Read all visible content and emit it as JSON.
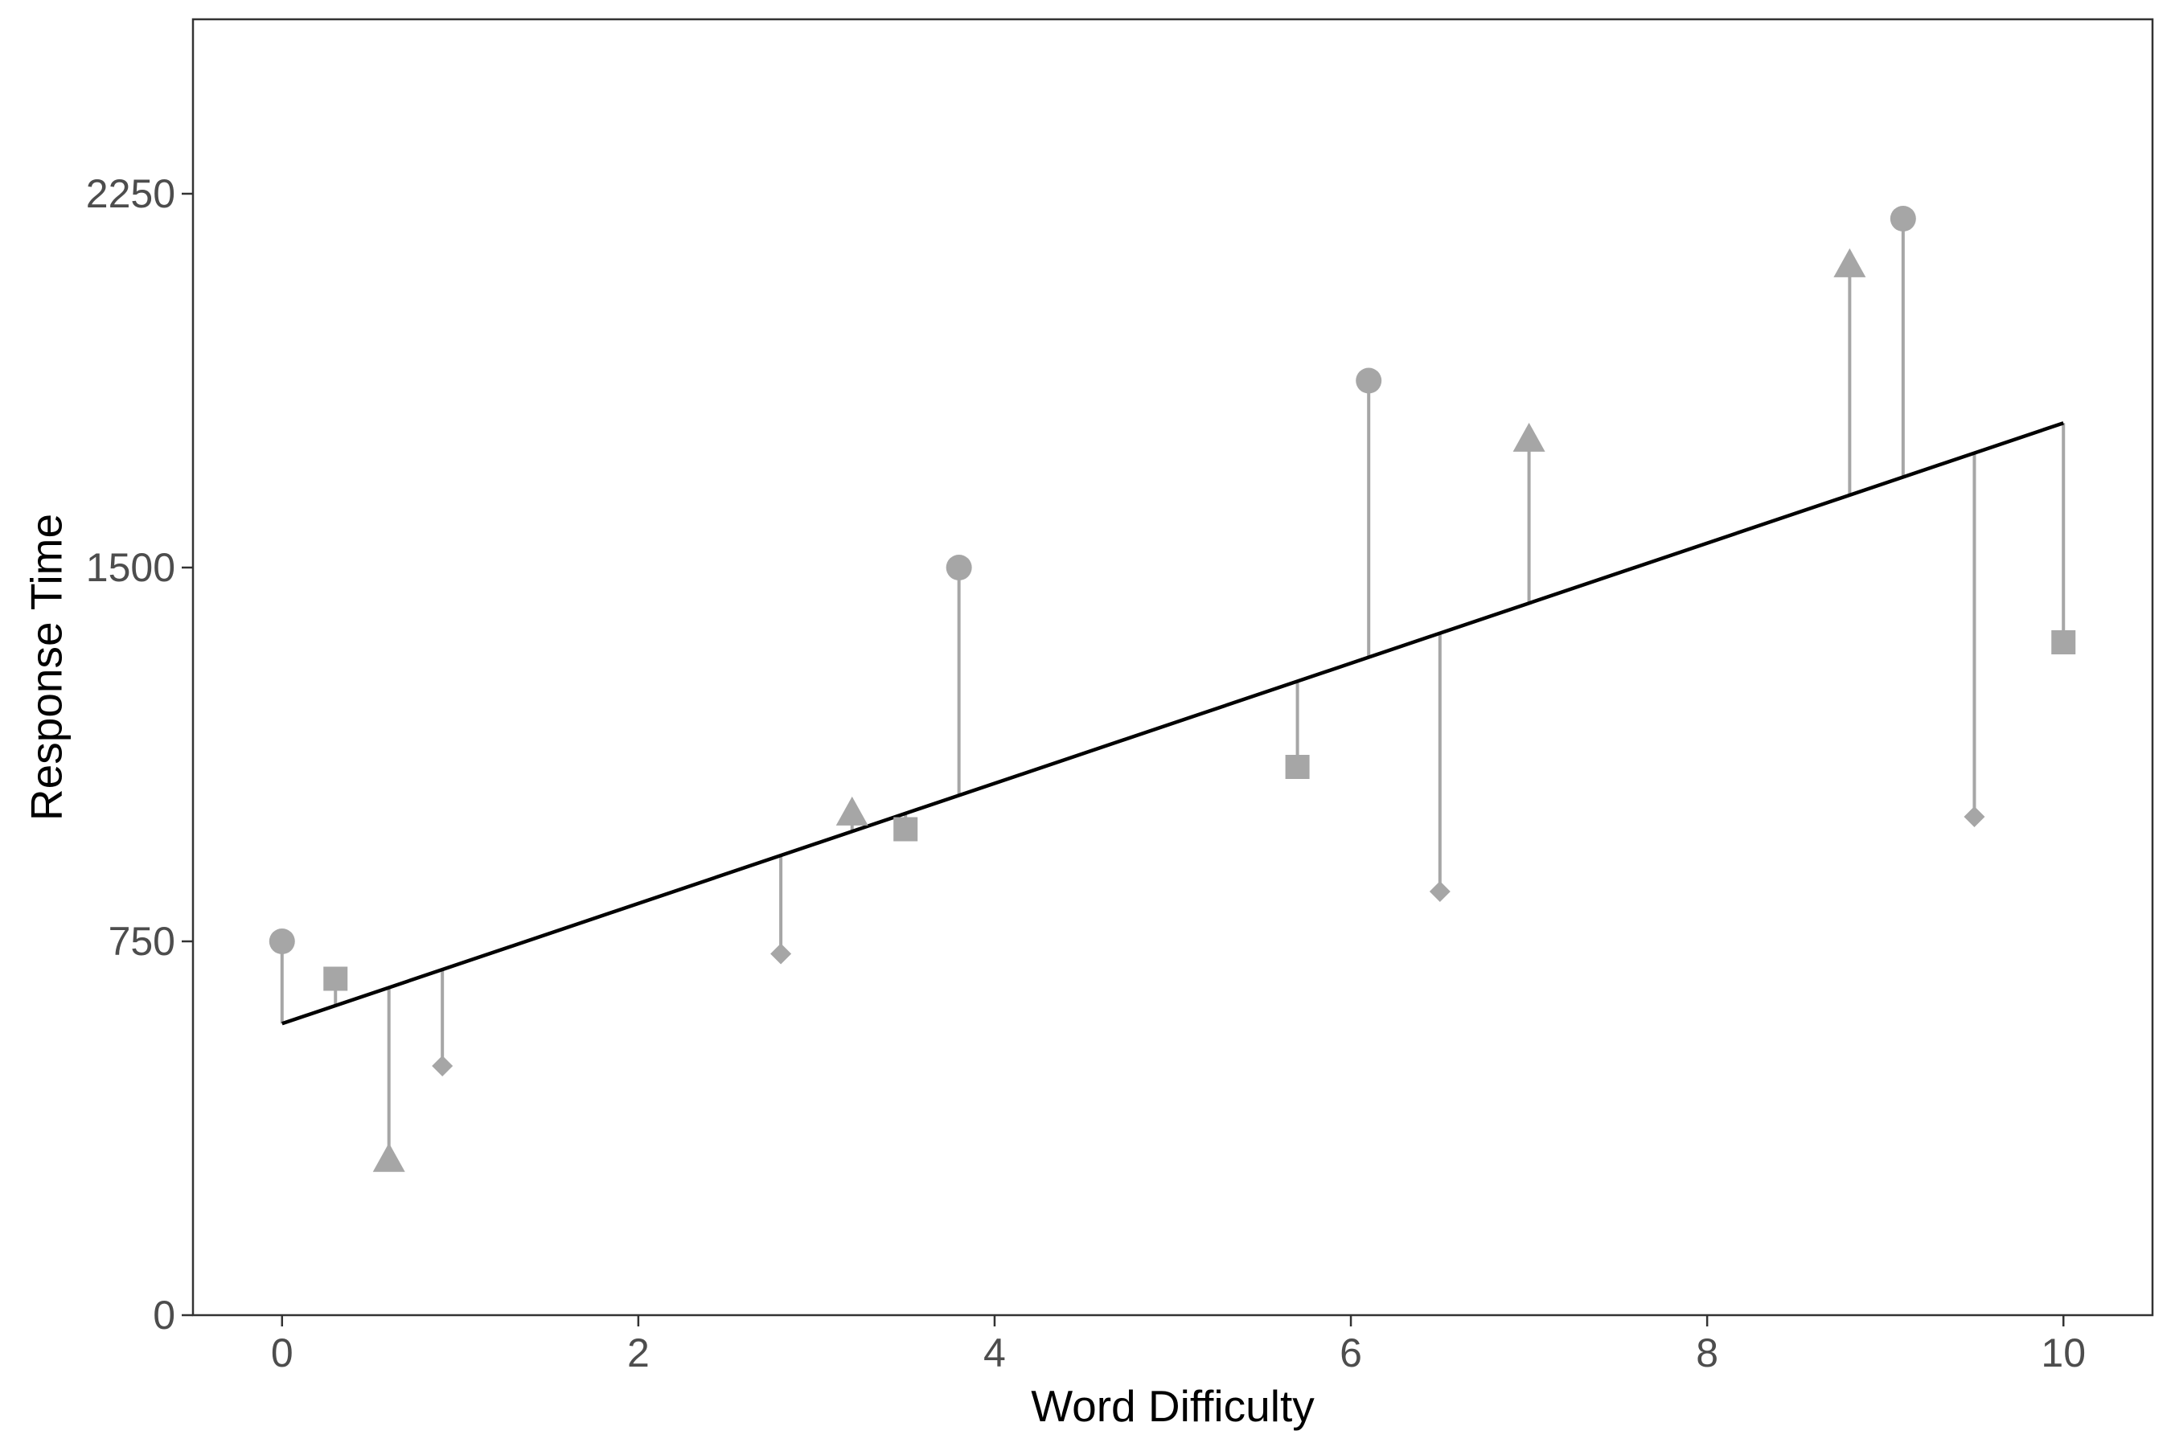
{
  "chart_data": {
    "type": "scatter",
    "title": "",
    "xlabel": "Word Difficulty",
    "ylabel": "Response Time",
    "xlim": [
      -0.5,
      10.5
    ],
    "ylim": [
      0,
      2600
    ],
    "xticks": [
      0,
      2,
      4,
      6,
      8,
      10
    ],
    "yticks": [
      0,
      750,
      1500,
      2250
    ],
    "grid": false,
    "legend": "none",
    "fit_line": {
      "intercept": 585,
      "slope": 120.5,
      "x_range": [
        0,
        10
      ],
      "color": "#000000"
    },
    "marker_color": "#a6a6a6",
    "points": [
      {
        "x": 0.0,
        "y": 750,
        "shape": "circle"
      },
      {
        "x": 0.3,
        "y": 675,
        "shape": "square"
      },
      {
        "x": 0.6,
        "y": 310,
        "shape": "triangle"
      },
      {
        "x": 0.9,
        "y": 500,
        "shape": "diamond"
      },
      {
        "x": 2.8,
        "y": 725,
        "shape": "diamond"
      },
      {
        "x": 3.2,
        "y": 1005,
        "shape": "triangle"
      },
      {
        "x": 3.5,
        "y": 975,
        "shape": "square"
      },
      {
        "x": 3.8,
        "y": 1500,
        "shape": "circle"
      },
      {
        "x": 5.7,
        "y": 1100,
        "shape": "square"
      },
      {
        "x": 6.1,
        "y": 1875,
        "shape": "circle"
      },
      {
        "x": 6.5,
        "y": 850,
        "shape": "diamond"
      },
      {
        "x": 7.0,
        "y": 1755,
        "shape": "triangle"
      },
      {
        "x": 8.8,
        "y": 2105,
        "shape": "triangle"
      },
      {
        "x": 9.1,
        "y": 2200,
        "shape": "circle"
      },
      {
        "x": 9.5,
        "y": 1000,
        "shape": "diamond"
      },
      {
        "x": 10.0,
        "y": 1350,
        "shape": "square"
      }
    ]
  }
}
